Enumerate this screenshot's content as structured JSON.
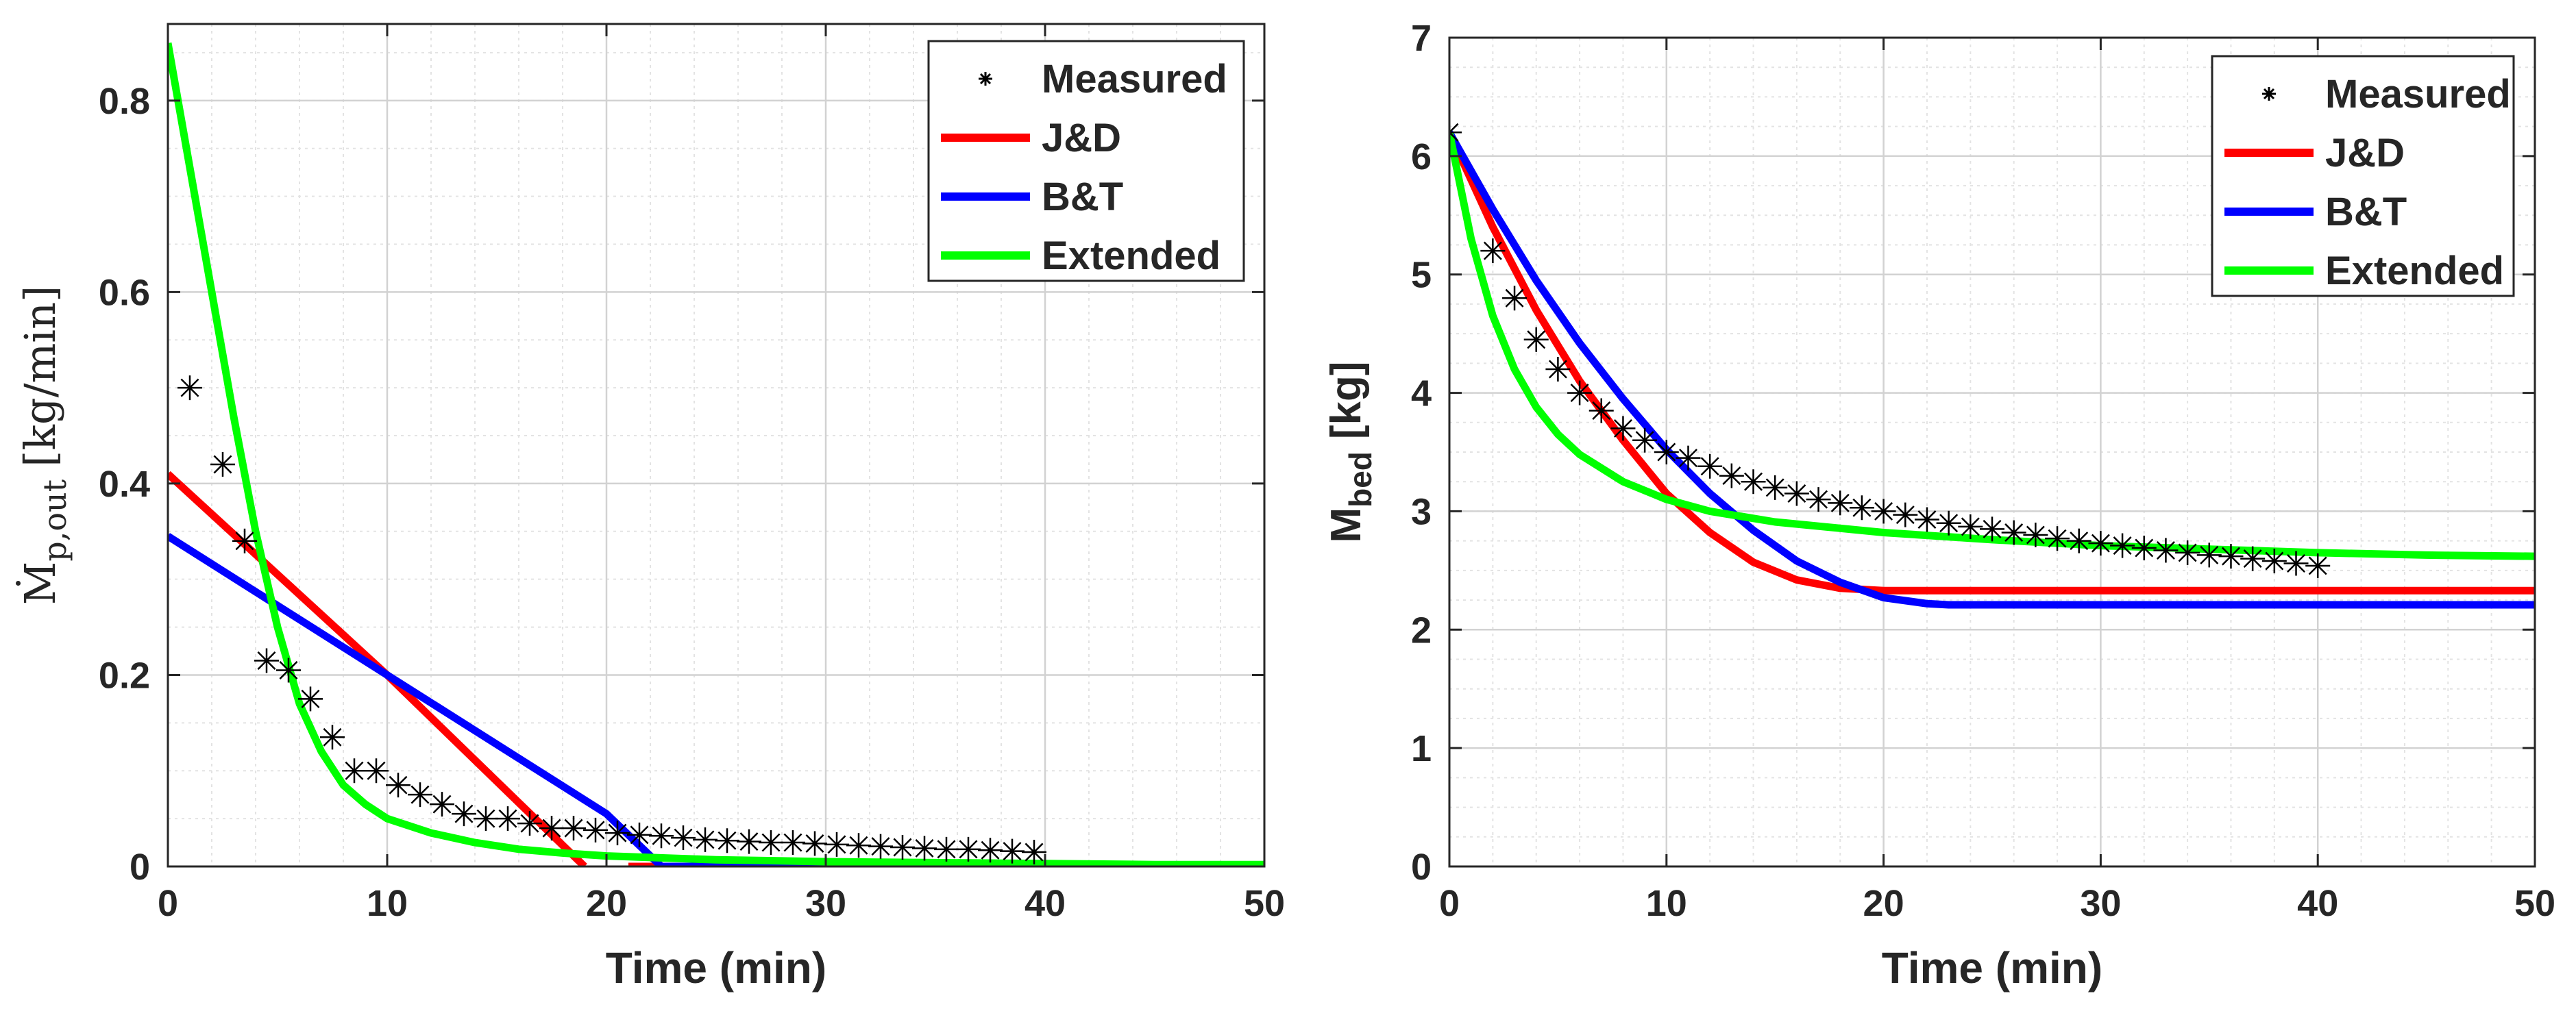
{
  "colors": {
    "measured": "#000000",
    "jd": "#ff0000",
    "bt": "#0000ff",
    "extended": "#00ff00"
  },
  "chart_data": [
    {
      "type": "line",
      "xlabel": "Time (min)",
      "ylabel_main": "Ṁ",
      "ylabel_sub": "p,out",
      "ylabel_unit": "[kg/min]",
      "xlim": [
        0,
        50
      ],
      "ylim": [
        0,
        0.88
      ],
      "xticks": [
        0,
        10,
        20,
        30,
        40,
        50
      ],
      "xtick_labels": [
        "0",
        "10",
        "20",
        "30",
        "40",
        "50"
      ],
      "yticks": [
        0,
        0.2,
        0.4,
        0.6,
        0.8
      ],
      "ytick_labels": [
        "0",
        "0.2",
        "0.4",
        "0.6",
        "0.8"
      ],
      "grid": true,
      "minor_grid": true,
      "legend_position": "top-right",
      "legend": [
        "Measured",
        "J&D",
        "B&T",
        "Extended"
      ],
      "series": [
        {
          "name": "Measured",
          "style": "markers",
          "x": [
            1,
            2.5,
            3.5,
            4.5,
            5.5,
            6.5,
            7.5,
            8.5,
            9.5,
            10.5,
            11.5,
            12.5,
            13.5,
            14.5,
            15.5,
            16.5,
            17.5,
            18.5,
            19.5,
            20.5,
            21.5,
            22.5,
            23.5,
            24.5,
            25.5,
            26.5,
            27.5,
            28.5,
            29.5,
            30.5,
            31.5,
            32.5,
            33.5,
            34.5,
            35.5,
            36.5,
            37.5,
            38.5,
            39.5
          ],
          "y": [
            0.5,
            0.42,
            0.34,
            0.215,
            0.205,
            0.175,
            0.135,
            0.1,
            0.1,
            0.085,
            0.075,
            0.065,
            0.055,
            0.05,
            0.05,
            0.045,
            0.04,
            0.04,
            0.038,
            0.035,
            0.033,
            0.032,
            0.03,
            0.028,
            0.027,
            0.026,
            0.025,
            0.025,
            0.024,
            0.023,
            0.022,
            0.021,
            0.02,
            0.019,
            0.018,
            0.018,
            0.017,
            0.016,
            0.015
          ]
        },
        {
          "name": "J&D",
          "style": "line",
          "x": [
            0,
            10,
            19,
            20,
            21,
            22,
            23,
            25,
            27,
            28,
            29
          ],
          "y": [
            0.41,
            0.2,
            0.0,
            null,
            0.0,
            0.0,
            0.0,
            0.0,
            0.0,
            null,
            0.0
          ]
        },
        {
          "name": "B&T",
          "style": "line",
          "x": [
            0,
            10,
            20,
            22.5,
            25,
            30,
            40,
            50
          ],
          "y": [
            0.345,
            0.2,
            0.055,
            0.0,
            0.0,
            0.0,
            0.0,
            0.0
          ]
        },
        {
          "name": "Extended",
          "style": "line",
          "x": [
            0,
            1,
            2,
            3,
            4,
            5,
            6,
            7,
            8,
            9,
            10,
            12,
            14,
            16,
            18,
            20,
            25,
            30,
            35,
            40,
            45,
            50
          ],
          "y": [
            0.86,
            0.73,
            0.6,
            0.47,
            0.35,
            0.25,
            0.17,
            0.12,
            0.085,
            0.065,
            0.05,
            0.035,
            0.025,
            0.018,
            0.014,
            0.011,
            0.007,
            0.005,
            0.004,
            0.003,
            0.002,
            0.002
          ]
        }
      ]
    },
    {
      "type": "line",
      "xlabel": "Time (min)",
      "ylabel_main": "M",
      "ylabel_sub": "bed",
      "ylabel_unit": "[kg]",
      "xlim": [
        0,
        50
      ],
      "ylim": [
        0,
        7
      ],
      "xticks": [
        0,
        10,
        20,
        30,
        40,
        50
      ],
      "xtick_labels": [
        "0",
        "10",
        "20",
        "30",
        "40",
        "50"
      ],
      "yticks": [
        0,
        1,
        2,
        3,
        4,
        5,
        6,
        7
      ],
      "ytick_labels": [
        "0",
        "1",
        "2",
        "3",
        "4",
        "5",
        "6",
        "7"
      ],
      "grid": true,
      "minor_grid": true,
      "legend_position": "top-right",
      "legend": [
        "Measured",
        "J&D",
        "B&T",
        "Extended"
      ],
      "series": [
        {
          "name": "Measured",
          "style": "markers",
          "x": [
            0,
            2,
            3,
            4,
            5,
            6,
            7,
            8,
            9,
            10,
            11,
            12,
            13,
            14,
            15,
            16,
            17,
            18,
            19,
            20,
            21,
            22,
            23,
            24,
            25,
            26,
            27,
            28,
            29,
            30,
            31,
            32,
            33,
            34,
            35,
            36,
            37,
            38,
            39,
            40
          ],
          "y": [
            6.2,
            5.2,
            4.8,
            4.45,
            4.2,
            4.0,
            3.85,
            3.7,
            3.6,
            3.5,
            3.45,
            3.38,
            3.3,
            3.25,
            3.2,
            3.15,
            3.1,
            3.07,
            3.03,
            3.0,
            2.97,
            2.93,
            2.9,
            2.87,
            2.85,
            2.82,
            2.8,
            2.77,
            2.75,
            2.73,
            2.71,
            2.69,
            2.67,
            2.65,
            2.63,
            2.62,
            2.6,
            2.58,
            2.56,
            2.54
          ]
        },
        {
          "name": "J&D",
          "style": "line",
          "x": [
            0,
            2,
            4,
            6,
            8,
            10,
            12,
            14,
            16,
            18,
            20,
            25,
            30,
            40,
            50
          ],
          "y": [
            6.2,
            5.4,
            4.7,
            4.1,
            3.6,
            3.15,
            2.82,
            2.57,
            2.42,
            2.35,
            2.33,
            2.33,
            2.33,
            2.33,
            2.33
          ]
        },
        {
          "name": "B&T",
          "style": "line",
          "x": [
            0,
            2,
            4,
            6,
            8,
            10,
            12,
            14,
            16,
            18,
            20,
            22,
            23,
            25,
            30,
            40,
            50
          ],
          "y": [
            6.2,
            5.55,
            4.95,
            4.42,
            3.95,
            3.52,
            3.15,
            2.84,
            2.58,
            2.4,
            2.27,
            2.22,
            2.21,
            2.21,
            2.21,
            2.21,
            2.21
          ]
        },
        {
          "name": "Extended",
          "style": "line",
          "x": [
            0,
            1,
            2,
            3,
            4,
            5,
            6,
            8,
            10,
            12,
            15,
            20,
            25,
            30,
            35,
            40,
            45,
            50
          ],
          "y": [
            6.2,
            5.3,
            4.65,
            4.2,
            3.88,
            3.65,
            3.48,
            3.25,
            3.1,
            3.0,
            2.91,
            2.82,
            2.76,
            2.71,
            2.68,
            2.65,
            2.63,
            2.62
          ]
        }
      ]
    }
  ]
}
